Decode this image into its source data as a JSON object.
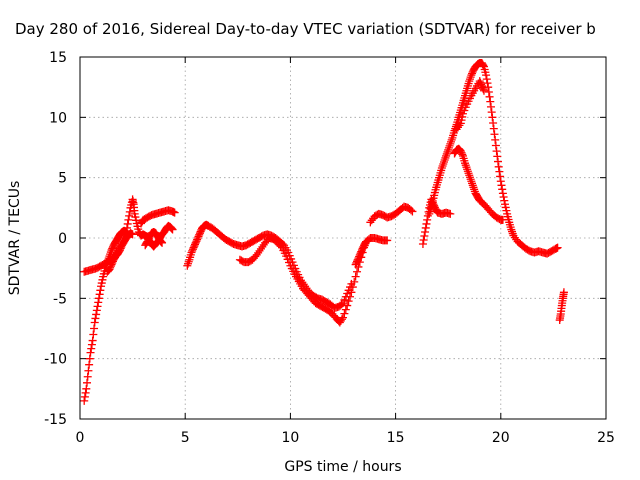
{
  "chart_data": {
    "type": "scatter",
    "title": "Day 280 of 2016, Sidereal Day-to-day VTEC variation (SDTVAR) for receiver b",
    "xlabel": "GPS time / hours",
    "ylabel": "SDTVAR / TECUs",
    "xlim": [
      0,
      25
    ],
    "ylim": [
      -15,
      15
    ],
    "xticks": [
      0,
      5,
      10,
      15,
      20,
      25
    ],
    "yticks": [
      -15,
      -10,
      -5,
      0,
      5,
      10,
      15
    ],
    "grid": true,
    "legend": "none",
    "marker": "+",
    "color": "#ff0000",
    "series": [
      {
        "points": [
          [
            0.2,
            -13.5
          ],
          [
            0.3,
            -12.5
          ],
          [
            0.4,
            -11
          ],
          [
            0.5,
            -9.5
          ],
          [
            0.6,
            -8.5
          ],
          [
            0.7,
            -7
          ],
          [
            0.8,
            -6
          ],
          [
            0.9,
            -5
          ],
          [
            1.0,
            -4
          ],
          [
            1.1,
            -3.2
          ],
          [
            1.2,
            -2.5
          ],
          [
            1.3,
            -2
          ],
          [
            1.4,
            -1.5
          ],
          [
            1.5,
            -1
          ],
          [
            1.6,
            -0.6
          ],
          [
            1.7,
            -0.3
          ],
          [
            1.8,
            0
          ],
          [
            1.9,
            0.3
          ],
          [
            2.0,
            0.5
          ],
          [
            2.1,
            0.6
          ],
          [
            2.2,
            0.5
          ],
          [
            2.3,
            0.3
          ]
        ]
      },
      {
        "points": [
          [
            0.2,
            -2.8
          ],
          [
            0.4,
            -2.7
          ],
          [
            0.6,
            -2.6
          ],
          [
            0.8,
            -2.5
          ],
          [
            1.0,
            -2.3
          ],
          [
            1.2,
            -2.1
          ],
          [
            1.4,
            -1.8
          ],
          [
            1.6,
            -1.5
          ],
          [
            1.8,
            -1.0
          ],
          [
            2.0,
            -0.5
          ],
          [
            2.1,
            0
          ],
          [
            2.2,
            0.5
          ],
          [
            2.3,
            1.5
          ],
          [
            2.4,
            2.5
          ],
          [
            2.5,
            3.2
          ],
          [
            2.55,
            2.8
          ],
          [
            2.6,
            2.0
          ],
          [
            2.7,
            1.2
          ],
          [
            2.8,
            0.5
          ],
          [
            2.9,
            0.2
          ],
          [
            3.0,
            0.3
          ],
          [
            3.1,
            0.2
          ],
          [
            3.2,
            0.1
          ],
          [
            3.3,
            -0.2
          ],
          [
            3.4,
            -0.5
          ],
          [
            3.5,
            -0.7
          ],
          [
            3.6,
            -0.5
          ],
          [
            3.7,
            -0.3
          ],
          [
            3.8,
            0
          ],
          [
            3.9,
            0.3
          ],
          [
            4.0,
            0.5
          ],
          [
            4.1,
            0.8
          ],
          [
            4.2,
            1.0
          ],
          [
            4.3,
            0.9
          ],
          [
            4.4,
            0.7
          ]
        ]
      },
      {
        "points": [
          [
            1.3,
            -2.8
          ],
          [
            1.4,
            -2.6
          ],
          [
            1.5,
            -2.2
          ],
          [
            1.6,
            -1.8
          ],
          [
            1.7,
            -1.5
          ],
          [
            1.8,
            -1.3
          ],
          [
            1.9,
            -1.0
          ],
          [
            2.0,
            -0.6
          ],
          [
            2.1,
            -0.3
          ],
          [
            2.2,
            0.0
          ],
          [
            2.3,
            0.2
          ],
          [
            2.4,
            0.4
          ],
          [
            2.5,
            0.3
          ]
        ]
      },
      {
        "points": [
          [
            2.9,
            1.2
          ],
          [
            3.0,
            1.5
          ],
          [
            3.2,
            1.7
          ],
          [
            3.4,
            1.9
          ],
          [
            3.6,
            2.0
          ],
          [
            3.8,
            2.1
          ],
          [
            4.0,
            2.2
          ],
          [
            4.2,
            2.3
          ],
          [
            4.4,
            2.2
          ],
          [
            4.5,
            2.1
          ]
        ]
      },
      {
        "points": [
          [
            3.1,
            -0.6
          ],
          [
            3.2,
            -0.3
          ],
          [
            3.3,
            0.1
          ],
          [
            3.4,
            0.4
          ],
          [
            3.5,
            0.5
          ],
          [
            3.6,
            0.4
          ],
          [
            3.7,
            0.1
          ],
          [
            3.8,
            -0.2
          ],
          [
            3.9,
            -0.4
          ]
        ]
      },
      {
        "points": [
          [
            5.1,
            -2.3
          ],
          [
            5.2,
            -1.8
          ],
          [
            5.3,
            -1.2
          ],
          [
            5.4,
            -0.8
          ],
          [
            5.5,
            -0.4
          ],
          [
            5.6,
            0
          ],
          [
            5.7,
            0.4
          ],
          [
            5.8,
            0.8
          ],
          [
            5.9,
            1.0
          ],
          [
            6.0,
            1.1
          ],
          [
            6.1,
            1.0
          ],
          [
            6.3,
            0.8
          ],
          [
            6.5,
            0.5
          ],
          [
            6.7,
            0.2
          ],
          [
            6.9,
            -0.1
          ],
          [
            7.1,
            -0.3
          ],
          [
            7.3,
            -0.5
          ],
          [
            7.5,
            -0.6
          ],
          [
            7.7,
            -0.7
          ],
          [
            7.9,
            -0.6
          ],
          [
            8.1,
            -0.4
          ],
          [
            8.3,
            -0.2
          ],
          [
            8.5,
            0
          ],
          [
            8.7,
            0.2
          ],
          [
            8.9,
            0.3
          ],
          [
            9.1,
            0.2
          ],
          [
            9.3,
            0
          ],
          [
            9.5,
            -0.3
          ],
          [
            9.7,
            -0.6
          ],
          [
            9.9,
            -1.2
          ],
          [
            10.1,
            -2.0
          ],
          [
            10.3,
            -2.8
          ],
          [
            10.5,
            -3.5
          ],
          [
            10.7,
            -4.0
          ],
          [
            10.9,
            -4.5
          ],
          [
            11.1,
            -4.8
          ],
          [
            11.3,
            -5.0
          ],
          [
            11.5,
            -5.1
          ],
          [
            11.7,
            -5.3
          ],
          [
            11.9,
            -5.5
          ],
          [
            12.1,
            -5.8
          ],
          [
            12.3,
            -5.7
          ],
          [
            12.5,
            -5.4
          ],
          [
            12.7,
            -4.6
          ],
          [
            12.9,
            -3.8
          ]
        ]
      },
      {
        "points": [
          [
            7.6,
            -1.8
          ],
          [
            7.8,
            -2.0
          ],
          [
            8.0,
            -2.0
          ],
          [
            8.2,
            -1.8
          ],
          [
            8.4,
            -1.4
          ],
          [
            8.6,
            -0.9
          ],
          [
            8.8,
            -0.4
          ],
          [
            9.0,
            0
          ],
          [
            9.2,
            -0.1
          ],
          [
            9.4,
            -0.4
          ],
          [
            9.6,
            -0.8
          ],
          [
            9.8,
            -1.5
          ],
          [
            10.0,
            -2.3
          ],
          [
            10.2,
            -3.0
          ],
          [
            10.4,
            -3.6
          ],
          [
            10.6,
            -4.2
          ],
          [
            10.8,
            -4.6
          ],
          [
            11.0,
            -5.0
          ],
          [
            11.2,
            -5.4
          ],
          [
            11.4,
            -5.6
          ],
          [
            11.6,
            -5.8
          ],
          [
            11.8,
            -6.0
          ],
          [
            12.0,
            -6.3
          ],
          [
            12.2,
            -6.7
          ],
          [
            12.35,
            -7.0
          ],
          [
            12.5,
            -6.6
          ],
          [
            12.7,
            -5.6
          ],
          [
            12.9,
            -4.5
          ],
          [
            13.1,
            -3.2
          ],
          [
            13.3,
            -2.0
          ],
          [
            13.5,
            -0.8
          ],
          [
            13.6,
            -0.3
          ],
          [
            13.8,
            0
          ],
          [
            14.0,
            0
          ],
          [
            14.2,
            -0.1
          ],
          [
            14.4,
            -0.2
          ],
          [
            14.6,
            -0.2
          ]
        ]
      },
      {
        "points": [
          [
            13.1,
            -2.2
          ],
          [
            13.2,
            -1.8
          ],
          [
            13.3,
            -1.4
          ],
          [
            13.4,
            -1.0
          ],
          [
            13.5,
            -0.6
          ],
          [
            13.6,
            -0.3
          ]
        ]
      },
      {
        "points": [
          [
            13.8,
            1.3
          ],
          [
            14.0,
            1.8
          ],
          [
            14.2,
            2.0
          ],
          [
            14.4,
            1.9
          ],
          [
            14.6,
            1.7
          ],
          [
            14.8,
            1.8
          ],
          [
            15.0,
            2.0
          ],
          [
            15.2,
            2.3
          ],
          [
            15.4,
            2.6
          ],
          [
            15.6,
            2.5
          ],
          [
            15.8,
            2.2
          ]
        ]
      },
      {
        "points": [
          [
            16.3,
            -0.5
          ],
          [
            16.4,
            0.5
          ],
          [
            16.5,
            1.5
          ],
          [
            16.6,
            2.5
          ],
          [
            16.7,
            3.2
          ],
          [
            16.8,
            2.8
          ],
          [
            16.9,
            2.4
          ],
          [
            17.0,
            2.1
          ],
          [
            17.2,
            2.0
          ],
          [
            17.4,
            2.1
          ],
          [
            17.6,
            2.0
          ]
        ]
      },
      {
        "points": [
          [
            16.6,
            2.0
          ],
          [
            16.7,
            2.6
          ],
          [
            16.8,
            3.3
          ],
          [
            16.9,
            4.0
          ],
          [
            17.0,
            4.6
          ],
          [
            17.1,
            5.2
          ],
          [
            17.2,
            5.8
          ],
          [
            17.3,
            6.3
          ],
          [
            17.4,
            6.8
          ],
          [
            17.5,
            7.3
          ],
          [
            17.6,
            7.8
          ],
          [
            17.7,
            8.3
          ],
          [
            17.8,
            8.9
          ],
          [
            17.9,
            9.4
          ],
          [
            18.0,
            10.0
          ],
          [
            18.1,
            10.6
          ],
          [
            18.2,
            11.2
          ],
          [
            18.3,
            11.8
          ],
          [
            18.4,
            12.4
          ],
          [
            18.5,
            13.0
          ],
          [
            18.6,
            13.5
          ],
          [
            18.7,
            13.9
          ],
          [
            18.8,
            14.2
          ],
          [
            18.9,
            14.4
          ],
          [
            19.0,
            14.5
          ],
          [
            19.1,
            14.5
          ],
          [
            19.2,
            14.2
          ],
          [
            19.3,
            13.5
          ],
          [
            19.4,
            12.5
          ],
          [
            19.5,
            11.3
          ],
          [
            19.6,
            10.0
          ],
          [
            19.7,
            8.6
          ],
          [
            19.8,
            7.2
          ],
          [
            19.9,
            5.9
          ],
          [
            20.0,
            4.7
          ],
          [
            20.1,
            3.7
          ],
          [
            20.2,
            2.8
          ],
          [
            20.3,
            2.0
          ],
          [
            20.4,
            1.3
          ],
          [
            20.5,
            0.7
          ],
          [
            20.6,
            0.2
          ],
          [
            20.8,
            -0.3
          ],
          [
            21.0,
            -0.6
          ],
          [
            21.2,
            -0.9
          ],
          [
            21.4,
            -1.1
          ],
          [
            21.6,
            -1.2
          ],
          [
            21.8,
            -1.1
          ],
          [
            22.0,
            -1.2
          ],
          [
            22.2,
            -1.3
          ],
          [
            22.4,
            -1.1
          ],
          [
            22.6,
            -0.9
          ],
          [
            22.7,
            -0.8
          ]
        ]
      },
      {
        "points": [
          [
            17.8,
            7.0
          ],
          [
            17.9,
            7.3
          ],
          [
            18.0,
            7.4
          ],
          [
            18.1,
            7.2
          ],
          [
            18.2,
            6.8
          ],
          [
            18.3,
            6.2
          ],
          [
            18.4,
            5.7
          ],
          [
            18.5,
            5.2
          ],
          [
            18.6,
            4.7
          ],
          [
            18.7,
            4.2
          ],
          [
            18.8,
            3.7
          ],
          [
            18.9,
            3.4
          ],
          [
            19.0,
            3.1
          ],
          [
            19.2,
            2.8
          ],
          [
            19.4,
            2.4
          ],
          [
            19.6,
            2.0
          ],
          [
            19.8,
            1.7
          ],
          [
            20.0,
            1.5
          ],
          [
            20.1,
            1.5
          ]
        ]
      },
      {
        "points": [
          [
            17.9,
            9.0
          ],
          [
            18.1,
            9.5
          ],
          [
            18.2,
            10.3
          ],
          [
            18.4,
            11.1
          ],
          [
            18.6,
            11.8
          ],
          [
            18.8,
            12.4
          ],
          [
            19.0,
            13.0
          ],
          [
            19.1,
            12.6
          ],
          [
            19.2,
            12.2
          ]
        ]
      },
      {
        "points": [
          [
            22.8,
            -6.8
          ],
          [
            22.85,
            -6.3
          ],
          [
            22.9,
            -5.6
          ],
          [
            22.95,
            -5.0
          ],
          [
            23.0,
            -4.5
          ]
        ]
      }
    ]
  }
}
